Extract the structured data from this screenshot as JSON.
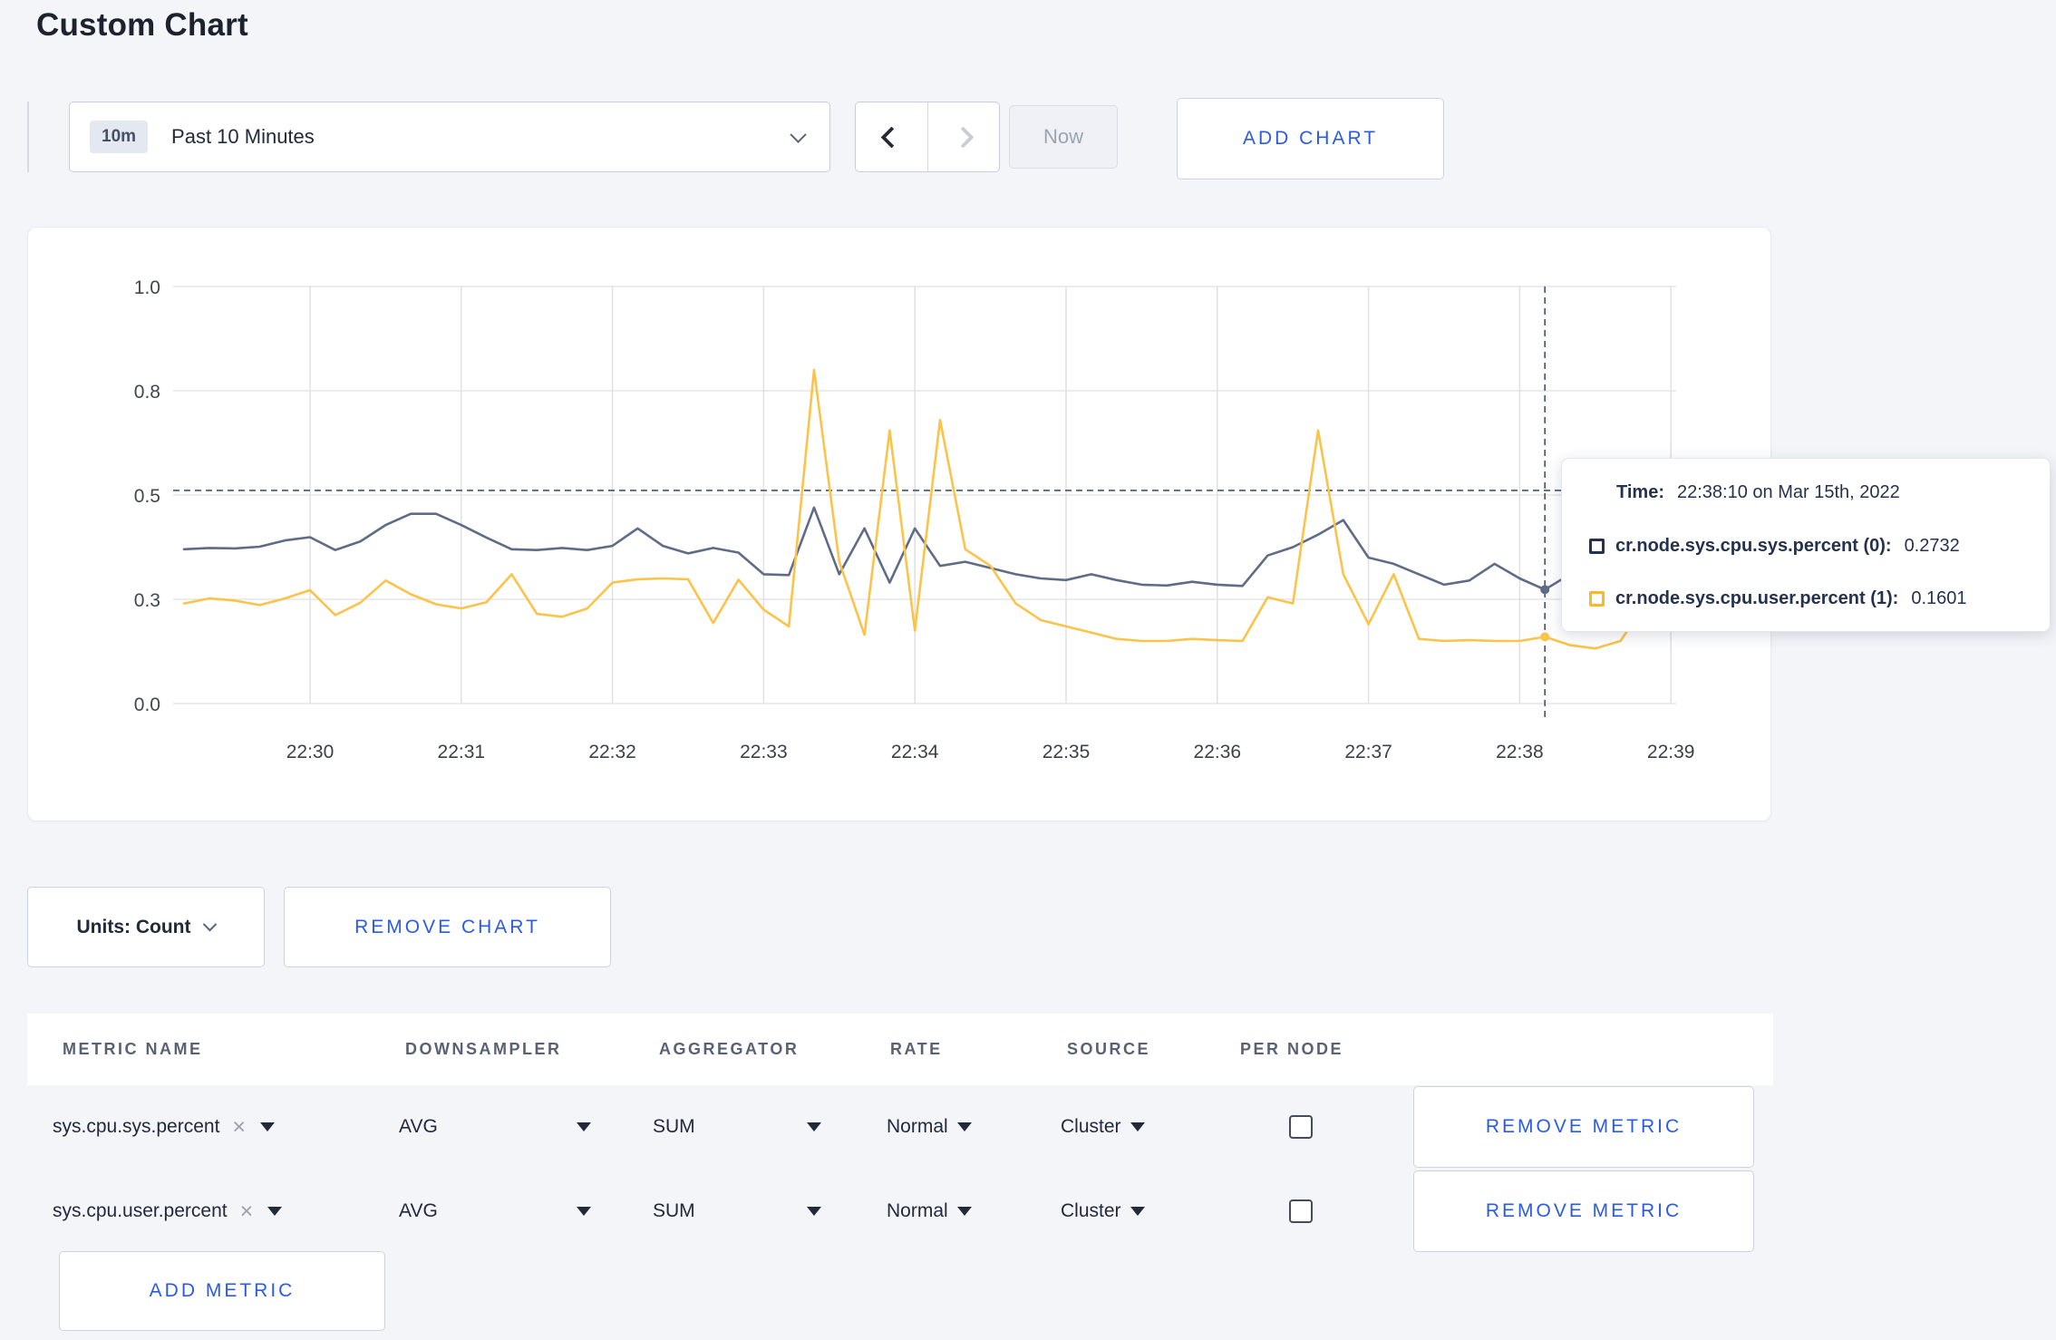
{
  "page": {
    "title": "Custom Chart",
    "background": "#f4f5f9",
    "accent_blue": "#2b5be2"
  },
  "toolbar": {
    "time_range_badge": "10m",
    "time_range_label": "Past 10 Minutes",
    "now_label": "Now",
    "add_chart_label": "ADD CHART"
  },
  "chart_data": {
    "type": "line",
    "title": "",
    "xlabel": "",
    "ylabel": "",
    "ylim": [
      0.0,
      1.0
    ],
    "grid": true,
    "x_ticks": [
      "22:30",
      "22:31",
      "22:32",
      "22:33",
      "22:34",
      "22:35",
      "22:36",
      "22:37",
      "22:38",
      "22:39"
    ],
    "y_ticks": [
      "0.0",
      "0.3",
      "0.5",
      "0.8",
      "1.0"
    ],
    "y_tick_values": [
      0.0,
      0.25,
      0.5,
      0.75,
      1.0
    ],
    "start_time": "22:29:10",
    "interval_seconds": 10,
    "series": [
      {
        "name": "cr.node.sys.cpu.sys.percent (0)",
        "color": "#5f6c87",
        "values": [
          0.37,
          0.373,
          0.372,
          0.376,
          0.391,
          0.399,
          0.368,
          0.389,
          0.428,
          0.455,
          0.455,
          0.428,
          0.398,
          0.37,
          0.368,
          0.373,
          0.368,
          0.378,
          0.42,
          0.378,
          0.36,
          0.373,
          0.362,
          0.31,
          0.308,
          0.47,
          0.31,
          0.42,
          0.29,
          0.42,
          0.33,
          0.34,
          0.325,
          0.31,
          0.3,
          0.296,
          0.31,
          0.296,
          0.285,
          0.283,
          0.292,
          0.285,
          0.282,
          0.355,
          0.375,
          0.405,
          0.44,
          0.35,
          0.335,
          0.31,
          0.285,
          0.295,
          0.335,
          0.3,
          0.2732,
          0.31,
          0.3,
          0.305,
          0.302,
          0.3
        ]
      },
      {
        "name": "cr.node.sys.cpu.user.percent (1)",
        "color": "#fcc34b",
        "values": [
          0.24,
          0.252,
          0.247,
          0.236,
          0.252,
          0.272,
          0.212,
          0.242,
          0.295,
          0.262,
          0.238,
          0.228,
          0.243,
          0.31,
          0.215,
          0.208,
          0.228,
          0.29,
          0.298,
          0.3,
          0.298,
          0.193,
          0.297,
          0.225,
          0.185,
          0.8,
          0.34,
          0.165,
          0.655,
          0.175,
          0.68,
          0.37,
          0.33,
          0.24,
          0.2,
          0.185,
          0.17,
          0.155,
          0.15,
          0.15,
          0.155,
          0.152,
          0.15,
          0.255,
          0.24,
          0.655,
          0.31,
          0.19,
          0.31,
          0.155,
          0.15,
          0.152,
          0.15,
          0.15,
          0.1601,
          0.14,
          0.132,
          0.15,
          0.24,
          0.28
        ]
      }
    ],
    "crosshair": {
      "time": "22:38:10",
      "hline_value": 0.511,
      "color": "#44546e"
    }
  },
  "tooltip": {
    "time_label": "Time:",
    "time_value": "22:38:10 on Mar 15th, 2022",
    "rows": [
      {
        "label": "cr.node.sys.cpu.sys.percent (0):",
        "value": "0.2732",
        "swatch_color": "#25324d"
      },
      {
        "label": "cr.node.sys.cpu.user.percent (1):",
        "value": "0.1601",
        "swatch_color": "#fdb826"
      }
    ]
  },
  "chart_controls": {
    "units_label": "Units: Count",
    "remove_chart_label": "REMOVE CHART"
  },
  "metrics_table": {
    "headers": [
      "METRIC NAME",
      "DOWNSAMPLER",
      "AGGREGATOR",
      "RATE",
      "SOURCE",
      "PER NODE"
    ],
    "close_glyph": "×",
    "rows": [
      {
        "metric": "sys.cpu.sys.percent",
        "downsampler": "AVG",
        "aggregator": "SUM",
        "rate": "Normal",
        "source": "Cluster",
        "per_node_checked": false,
        "remove_label": "REMOVE METRIC"
      },
      {
        "metric": "sys.cpu.user.percent",
        "downsampler": "AVG",
        "aggregator": "SUM",
        "rate": "Normal",
        "source": "Cluster",
        "per_node_checked": false,
        "remove_label": "REMOVE METRIC"
      }
    ],
    "add_metric_label": "ADD METRIC"
  }
}
